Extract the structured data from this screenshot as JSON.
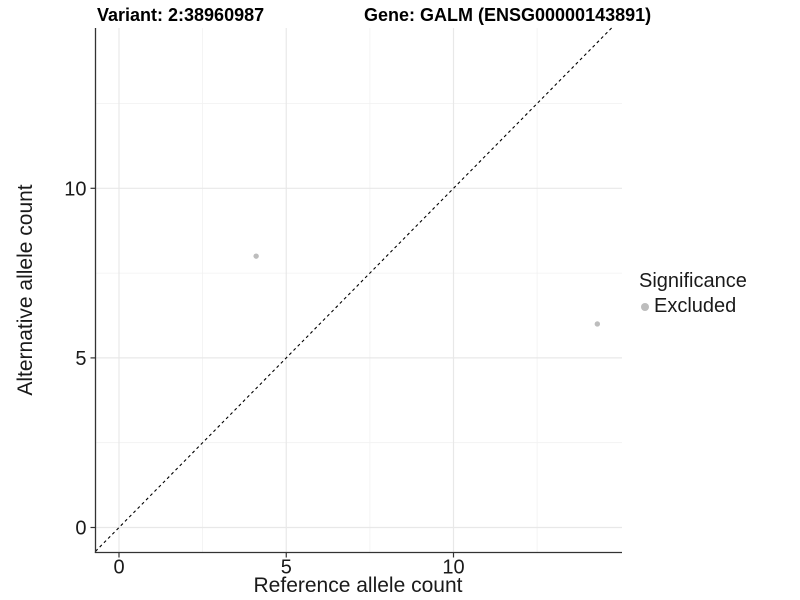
{
  "chart_data": {
    "type": "scatter",
    "title_left": "Variant: 2:38960987",
    "title_right": "Gene: GALM (ENSG00000143891)",
    "xlabel": "Reference allele count",
    "ylabel": "Alternative allele count",
    "x_ticks": [
      0,
      5,
      10
    ],
    "y_ticks": [
      0,
      5,
      10
    ],
    "x_minor_gridlines": [
      2.5,
      7.5,
      12.5
    ],
    "y_minor_gridlines": [
      2.5,
      7.5,
      12.5
    ],
    "xlim": [
      -0.75,
      15.05
    ],
    "ylim": [
      -0.75,
      14.73
    ],
    "grid": true,
    "identity_line": {
      "slope": 1,
      "intercept": 0,
      "style": "dashed",
      "color": "#000000"
    },
    "series": [
      {
        "name": "Excluded",
        "color": "#bdbdbd",
        "points": [
          {
            "x": 4.1,
            "y": 8
          },
          {
            "x": 14.3,
            "y": 6
          }
        ]
      }
    ],
    "legend_position": "right"
  },
  "legend": {
    "title": "Significance",
    "items": [
      {
        "label": "Excluded",
        "color": "#bdbdbd"
      }
    ]
  },
  "colors": {
    "background": "#ffffff",
    "grid_major": "#e8e8e8",
    "grid_minor": "#f1f1f1",
    "axis_line": "#333333",
    "tick_text": "#1a1a1a",
    "point": "#bdbdbd",
    "identity_line": "#000000"
  }
}
